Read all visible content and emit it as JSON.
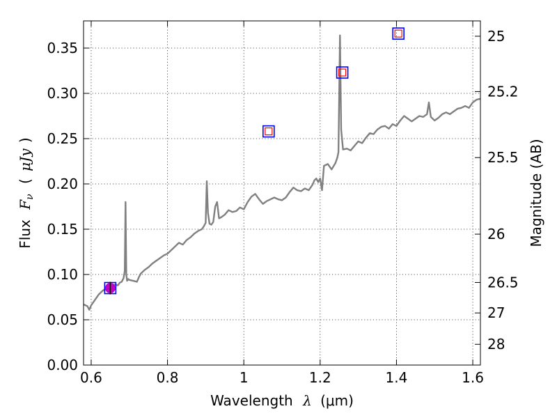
{
  "chart_data": {
    "type": "line",
    "xlabel": "Wavelength",
    "xlabel_symbol": "λ",
    "xlabel_unit": "(μm)",
    "ylabel": "Flux",
    "ylabel_symbol": "F",
    "ylabel_symbol_sub": "ν",
    "ylabel_unit": "μJy",
    "y2label": "Magnitude (AB)",
    "xlim": [
      0.58,
      1.62
    ],
    "ylim": [
      0.0,
      0.38
    ],
    "grid": true,
    "x_ticks": [
      {
        "value": 0.6,
        "label": "0.6"
      },
      {
        "value": 0.8,
        "label": "0.8"
      },
      {
        "value": 1.0,
        "label": "1"
      },
      {
        "value": 1.2,
        "label": "1.2"
      },
      {
        "value": 1.4,
        "label": "1.4"
      },
      {
        "value": 1.6,
        "label": "1.6"
      }
    ],
    "y_ticks": [
      {
        "value": 0.0,
        "label": "0.00"
      },
      {
        "value": 0.05,
        "label": "0.05"
      },
      {
        "value": 0.1,
        "label": "0.10"
      },
      {
        "value": 0.15,
        "label": "0.15"
      },
      {
        "value": 0.2,
        "label": "0.20"
      },
      {
        "value": 0.25,
        "label": "0.25"
      },
      {
        "value": 0.3,
        "label": "0.30"
      },
      {
        "value": 0.35,
        "label": "0.35"
      }
    ],
    "y2_ticks": [
      {
        "magnitude": 25,
        "label": "25"
      },
      {
        "magnitude": 25.2,
        "label": "25.2"
      },
      {
        "magnitude": 25.5,
        "label": "25.5"
      },
      {
        "magnitude": 26,
        "label": "26"
      },
      {
        "magnitude": 26.5,
        "label": "26.5"
      },
      {
        "magnitude": 27,
        "label": "27"
      },
      {
        "magnitude": 28,
        "label": "28"
      }
    ],
    "series": [
      {
        "style": "line",
        "color": "#808080",
        "x": [
          0.58,
          0.59,
          0.595,
          0.6,
          0.61,
          0.62,
          0.63,
          0.64,
          0.65,
          0.66,
          0.67,
          0.675,
          0.68,
          0.685,
          0.688,
          0.69,
          0.692,
          0.694,
          0.697,
          0.7,
          0.71,
          0.72,
          0.725,
          0.73,
          0.74,
          0.75,
          0.76,
          0.77,
          0.78,
          0.79,
          0.8,
          0.81,
          0.82,
          0.83,
          0.84,
          0.85,
          0.86,
          0.87,
          0.88,
          0.89,
          0.895,
          0.9,
          0.903,
          0.906,
          0.91,
          0.915,
          0.92,
          0.925,
          0.93,
          0.935,
          0.94,
          0.95,
          0.96,
          0.97,
          0.98,
          0.99,
          1.0,
          1.01,
          1.02,
          1.03,
          1.04,
          1.05,
          1.06,
          1.07,
          1.08,
          1.09,
          1.1,
          1.11,
          1.12,
          1.13,
          1.14,
          1.15,
          1.16,
          1.17,
          1.18,
          1.185,
          1.19,
          1.195,
          1.2,
          1.205,
          1.21,
          1.22,
          1.23,
          1.24,
          1.245,
          1.248,
          1.25,
          1.252,
          1.255,
          1.26,
          1.27,
          1.28,
          1.29,
          1.3,
          1.31,
          1.32,
          1.33,
          1.34,
          1.35,
          1.36,
          1.37,
          1.38,
          1.39,
          1.4,
          1.41,
          1.42,
          1.43,
          1.44,
          1.45,
          1.46,
          1.47,
          1.48,
          1.485,
          1.49,
          1.5,
          1.51,
          1.52,
          1.53,
          1.54,
          1.55,
          1.56,
          1.57,
          1.58,
          1.59,
          1.6,
          1.61,
          1.62
        ],
        "y": [
          0.067,
          0.065,
          0.061,
          0.066,
          0.072,
          0.078,
          0.082,
          0.085,
          0.086,
          0.089,
          0.088,
          0.091,
          0.092,
          0.096,
          0.104,
          0.18,
          0.1,
          0.093,
          0.095,
          0.094,
          0.093,
          0.092,
          0.097,
          0.101,
          0.105,
          0.108,
          0.112,
          0.115,
          0.118,
          0.121,
          0.123,
          0.127,
          0.131,
          0.135,
          0.133,
          0.138,
          0.141,
          0.145,
          0.148,
          0.15,
          0.153,
          0.157,
          0.203,
          0.168,
          0.156,
          0.155,
          0.158,
          0.175,
          0.18,
          0.162,
          0.163,
          0.166,
          0.171,
          0.169,
          0.17,
          0.174,
          0.172,
          0.18,
          0.186,
          0.189,
          0.183,
          0.178,
          0.181,
          0.183,
          0.185,
          0.183,
          0.182,
          0.185,
          0.191,
          0.196,
          0.193,
          0.192,
          0.195,
          0.193,
          0.199,
          0.204,
          0.206,
          0.202,
          0.206,
          0.193,
          0.22,
          0.222,
          0.216,
          0.223,
          0.229,
          0.235,
          0.3,
          0.364,
          0.26,
          0.238,
          0.239,
          0.237,
          0.242,
          0.247,
          0.245,
          0.251,
          0.256,
          0.255,
          0.26,
          0.263,
          0.264,
          0.261,
          0.266,
          0.264,
          0.27,
          0.275,
          0.272,
          0.269,
          0.272,
          0.275,
          0.274,
          0.277,
          0.29,
          0.274,
          0.27,
          0.273,
          0.277,
          0.279,
          0.277,
          0.28,
          0.283,
          0.284,
          0.286,
          0.284,
          0.29,
          0.293,
          0.294
        ]
      },
      {
        "style": "markers",
        "marker": "square",
        "color": "#0000ff",
        "x": [
          0.65,
          1.065,
          1.258,
          1.405
        ],
        "y": [
          0.085,
          0.258,
          0.323,
          0.366
        ]
      },
      {
        "style": "markers",
        "marker": "square",
        "color": "#ff0000",
        "x": [
          1.065,
          1.258,
          1.405
        ],
        "y": [
          0.258,
          0.323,
          0.366
        ]
      },
      {
        "style": "markers",
        "marker": "circle",
        "color": "#bf00bf",
        "x": [
          0.65
        ],
        "y": [
          0.085
        ]
      }
    ]
  }
}
